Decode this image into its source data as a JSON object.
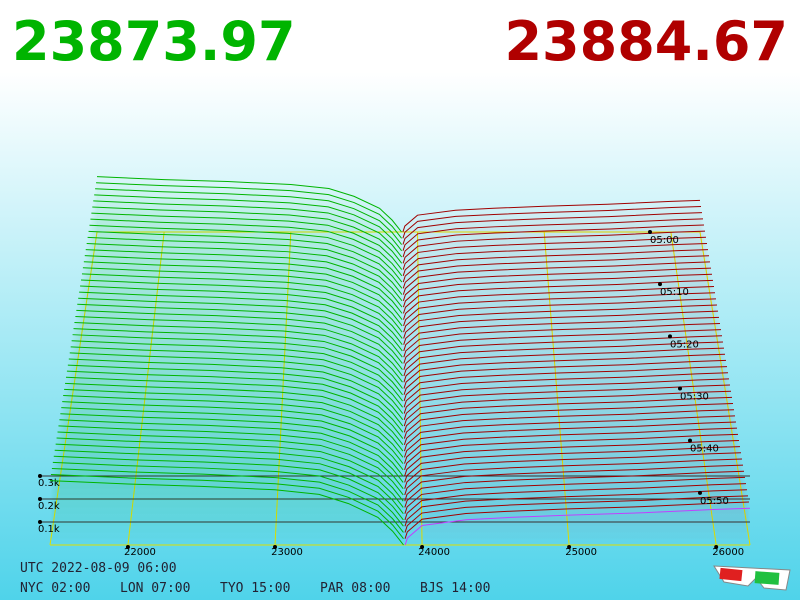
{
  "header": {
    "bid_price": "23873.97",
    "ask_price": "23884.67"
  },
  "chart_data": {
    "type": "depth3d",
    "bids": {
      "color": "#00b400",
      "x": [
        21470,
        22000,
        22500,
        23000,
        23300,
        23500,
        23700,
        23800,
        23850,
        23873.97
      ],
      "values": [
        280,
        265,
        255,
        240,
        220,
        180,
        120,
        60,
        20,
        0
      ]
    },
    "asks": {
      "color": "#a00000",
      "front_color": "#c040ff",
      "x": [
        23884.67,
        23900,
        24000,
        24300,
        24600,
        25000,
        25500,
        26000,
        26230
      ],
      "values": [
        0,
        30,
        85,
        110,
        120,
        130,
        140,
        155,
        160
      ]
    },
    "xlim": [
      21470,
      26230
    ],
    "xticks": [
      22000,
      23000,
      24000,
      25000,
      26000
    ],
    "ylim": [
      0,
      1000
    ],
    "yticks": [
      {
        "value": 100,
        "label": "0.1k"
      },
      {
        "value": 200,
        "label": "0.2k"
      },
      {
        "value": 300,
        "label": "0.3k"
      }
    ],
    "time_ticks": [
      "05:00",
      "05:10",
      "05:20",
      "05:30",
      "05:40",
      "05:50"
    ]
  },
  "footer": {
    "utc": "UTC 2022-08-09 06:00",
    "zones": [
      "NYC 02:00",
      "LON 07:00",
      "TYO 15:00",
      "PAR 08:00",
      "BJS 14:00"
    ]
  }
}
